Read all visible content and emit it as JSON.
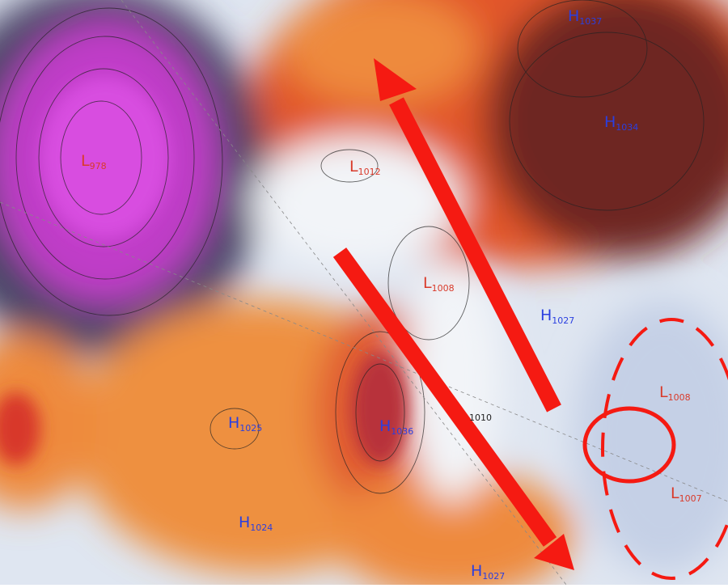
{
  "centers": [
    {
      "letter": "L",
      "pressure": "978"
    },
    {
      "letter": "L",
      "pressure": "1012"
    },
    {
      "letter": "L",
      "pressure": "1008"
    },
    {
      "letter": "H",
      "pressure": "1027"
    },
    {
      "letter": "L",
      "pressure": "1008"
    },
    {
      "letter": "H",
      "pressure": "1025"
    },
    {
      "letter": "H",
      "pressure": "1036"
    },
    {
      "letter": "L",
      "pressure": "1007"
    },
    {
      "letter": "H",
      "pressure": "1024"
    },
    {
      "letter": "H",
      "pressure": "1027"
    },
    {
      "letter": "H",
      "pressure": "1037"
    },
    {
      "letter": "H",
      "pressure": "1034"
    }
  ],
  "contour_labels": [
    "1010"
  ]
}
